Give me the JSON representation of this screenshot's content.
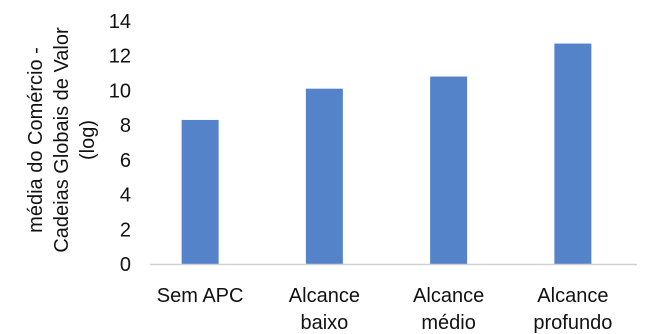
{
  "chart_data": {
    "type": "bar",
    "categories": [
      [
        "Sem APC"
      ],
      [
        "Alcance",
        "baixo"
      ],
      [
        "Alcance",
        "médio"
      ],
      [
        "Alcance",
        "profundo"
      ]
    ],
    "values": [
      8.3,
      10.1,
      10.8,
      12.7
    ],
    "ylabel": [
      "média do Comércio -",
      "Cadeias Globais de Valor",
      "(log)"
    ],
    "yticks": [
      "0",
      "2",
      "4",
      "6",
      "8",
      "10",
      "12",
      "14"
    ],
    "ylim": [
      0,
      14
    ],
    "grid": false,
    "bar_color": "#5483c9",
    "axis_color": "#d0d0d0"
  }
}
